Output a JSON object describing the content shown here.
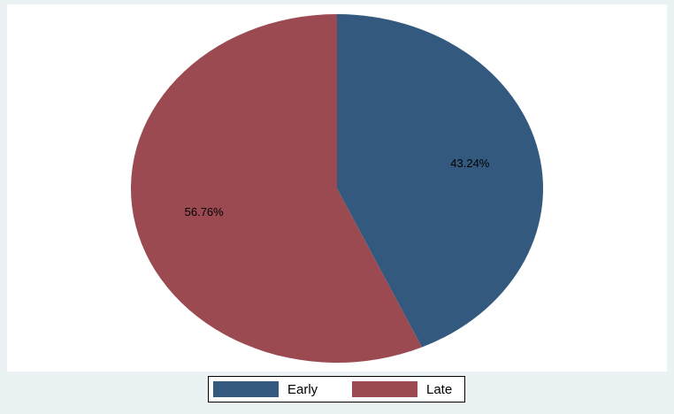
{
  "chart_data": {
    "type": "pie",
    "categories": [
      "Early",
      "Late"
    ],
    "values": [
      43.24,
      56.76
    ],
    "value_labels": [
      "43.24%",
      "56.76%"
    ],
    "colors": [
      "#335a7e",
      "#9a4a50"
    ],
    "legend": "bottom"
  }
}
